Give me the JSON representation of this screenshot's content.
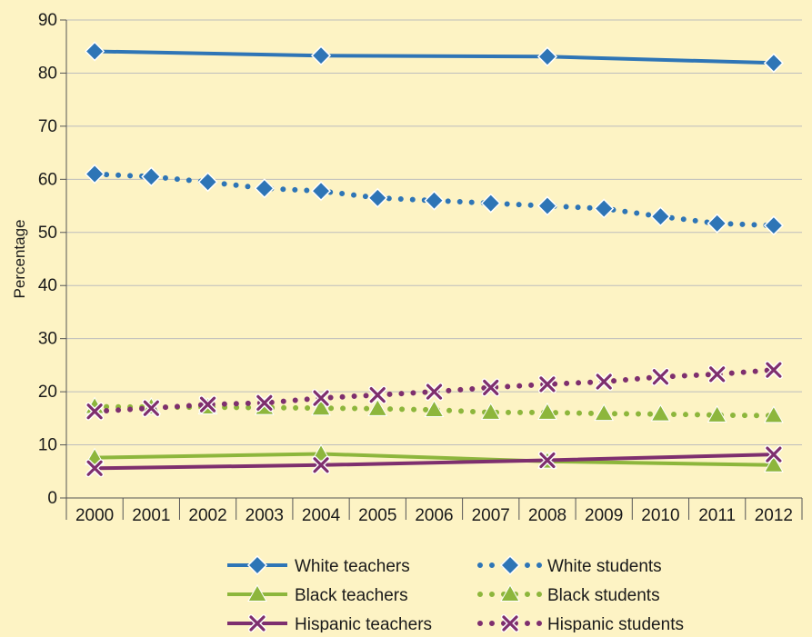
{
  "chart_data": {
    "type": "line",
    "title": "",
    "xlabel": "",
    "ylabel": "Percentage",
    "ylim": [
      0,
      90
    ],
    "yticks": [
      0,
      10,
      20,
      30,
      40,
      50,
      60,
      70,
      80,
      90
    ],
    "categories": [
      "2000",
      "2001",
      "2002",
      "2003",
      "2004",
      "2005",
      "2006",
      "2007",
      "2008",
      "2009",
      "2010",
      "2011",
      "2012"
    ],
    "grid": "horizontal",
    "legend_placement": "bottom",
    "series": [
      {
        "name": "White teachers",
        "color": "#2e75b6",
        "style": "solid",
        "marker": "diamond",
        "x": [
          "2000",
          "2004",
          "2008",
          "2012"
        ],
        "values": [
          84.1,
          83.3,
          83.1,
          81.9
        ]
      },
      {
        "name": "White students",
        "color": "#2e75b6",
        "style": "dotted",
        "marker": "diamond",
        "x": [
          "2000",
          "2001",
          "2002",
          "2003",
          "2004",
          "2005",
          "2006",
          "2007",
          "2008",
          "2009",
          "2010",
          "2011",
          "2012"
        ],
        "values": [
          61.0,
          60.5,
          59.5,
          58.3,
          57.8,
          56.5,
          56.0,
          55.5,
          55.0,
          54.5,
          53.0,
          51.7,
          51.3
        ]
      },
      {
        "name": "Black teachers",
        "color": "#8db63c",
        "style": "solid",
        "marker": "triangle",
        "x": [
          "2000",
          "2004",
          "2008",
          "2012"
        ],
        "values": [
          7.6,
          8.3,
          6.9,
          6.2
        ]
      },
      {
        "name": "Black students",
        "color": "#8db63c",
        "style": "dotted",
        "marker": "triangle",
        "x": [
          "2000",
          "2001",
          "2002",
          "2003",
          "2004",
          "2005",
          "2006",
          "2007",
          "2008",
          "2009",
          "2010",
          "2011",
          "2012"
        ],
        "values": [
          17.2,
          17.1,
          17.1,
          17.0,
          16.9,
          16.8,
          16.6,
          16.1,
          16.1,
          15.9,
          15.8,
          15.6,
          15.5
        ]
      },
      {
        "name": "Hispanic teachers",
        "color": "#7e2f6e",
        "style": "solid",
        "marker": "x",
        "x": [
          "2000",
          "2004",
          "2008",
          "2012"
        ],
        "values": [
          5.6,
          6.2,
          7.1,
          8.2
        ]
      },
      {
        "name": "Hispanic students",
        "color": "#7e2f6e",
        "style": "dotted",
        "marker": "x",
        "x": [
          "2000",
          "2001",
          "2002",
          "2003",
          "2004",
          "2005",
          "2006",
          "2007",
          "2008",
          "2009",
          "2010",
          "2011",
          "2012"
        ],
        "values": [
          16.3,
          16.9,
          17.6,
          17.9,
          18.8,
          19.4,
          20.0,
          20.8,
          21.4,
          21.9,
          22.8,
          23.3,
          24.1
        ]
      }
    ]
  }
}
